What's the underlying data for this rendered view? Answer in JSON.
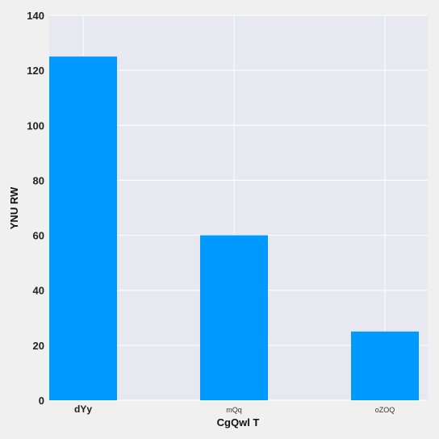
{
  "chart_data": {
    "type": "bar",
    "title": "",
    "xlabel": "CgQwl T",
    "ylabel": "YNU RW",
    "categories": [
      "dYy",
      "mQq",
      "oZOQ"
    ],
    "values": [
      125,
      60,
      25
    ],
    "ylim": [
      0,
      140
    ],
    "yticks": [
      0,
      20,
      40,
      60,
      80,
      100,
      120,
      140
    ],
    "grid": true,
    "legend": "none",
    "colors": {
      "bar": "#0099ff",
      "plot_background": "#e8e8f0",
      "page_background": "#f0f0f0",
      "grid": "#ffffff"
    }
  }
}
